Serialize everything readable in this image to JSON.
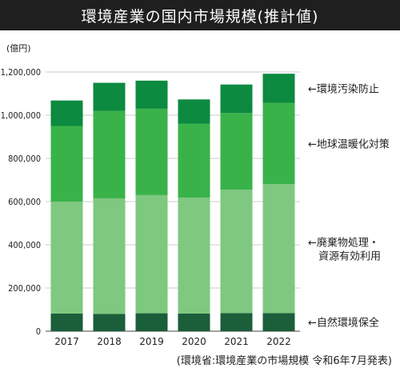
{
  "chart_data": {
    "type": "bar",
    "stacked": true,
    "title": "環境産業の国内市場規模(推計値)",
    "unit_label": "(億円)",
    "categories": [
      "2017",
      "2018",
      "2019",
      "2020",
      "2021",
      "2022"
    ],
    "series": [
      {
        "name": "←自然環境保全",
        "values": [
          82000,
          80000,
          83000,
          82000,
          84000,
          84000
        ],
        "color": "#1b5e3a"
      },
      {
        "name": "←廃棄物処理・資源有効利用",
        "values": [
          518000,
          535000,
          547000,
          536000,
          571000,
          597000
        ],
        "color": "#7ec87f"
      },
      {
        "name": "←地球温暖化対策",
        "values": [
          350000,
          405000,
          400000,
          343000,
          355000,
          376000
        ],
        "color": "#3ab24a"
      },
      {
        "name": "←環境汚染防止",
        "values": [
          118000,
          130000,
          130000,
          112000,
          132000,
          135000
        ],
        "color": "#0c8a40"
      }
    ],
    "yticks": [
      "0",
      "200,000",
      "400,000",
      "600,000",
      "800,000",
      "1,000,000",
      "1,200,000"
    ],
    "ylim": [
      0,
      1200000
    ],
    "grid": true,
    "legend_position": "right"
  },
  "source_note": "(環境省:環境産業の市場規模 令和6年7月発表)"
}
